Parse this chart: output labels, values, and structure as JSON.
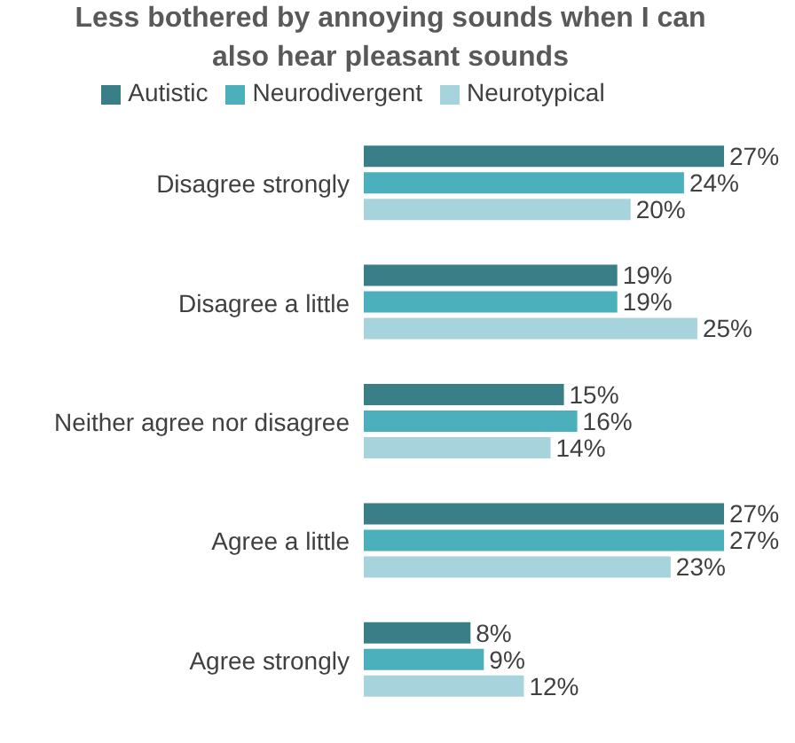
{
  "chart_data": {
    "type": "bar",
    "orientation": "horizontal",
    "title": "Less bothered by annoying sounds when I can also hear pleasant sounds",
    "categories": [
      "Disagree strongly",
      "Disagree a little",
      "Neither agree nor disagree",
      "Agree a little",
      "Agree strongly"
    ],
    "legend": "top",
    "series": [
      {
        "name": "Autistic",
        "color": "#3a7f87",
        "values": [
          27,
          19,
          15,
          27,
          8
        ],
        "value_labels": [
          "27%",
          "19%",
          "15%",
          "27%",
          "8%"
        ]
      },
      {
        "name": "Neurodivergent",
        "color": "#4bafbc",
        "values": [
          24,
          19,
          16,
          27,
          9
        ],
        "value_labels": [
          "24%",
          "19%",
          "16%",
          "27%",
          "9%"
        ]
      },
      {
        "name": "Neurotypical",
        "color": "#a7d4dc",
        "values": [
          20,
          25,
          14,
          23,
          12
        ],
        "value_labels": [
          "20%",
          "25%",
          "14%",
          "23%",
          "12%"
        ]
      }
    ]
  }
}
